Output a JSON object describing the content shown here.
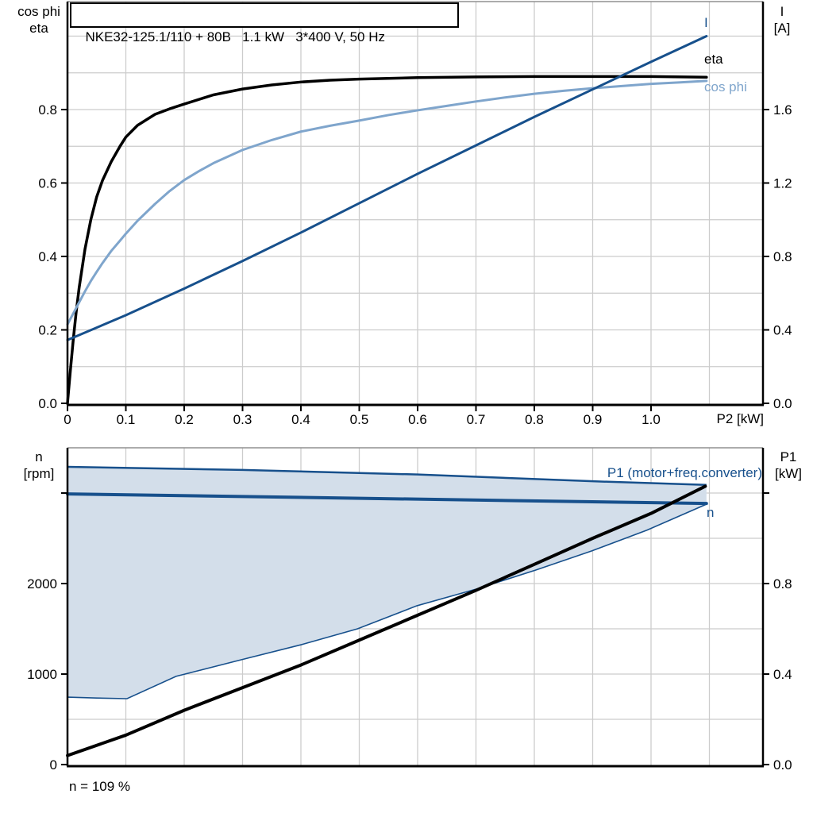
{
  "colors": {
    "navy": "#17508C",
    "light_blue": "#7FA5CC",
    "black": "#000000",
    "fill": "#D3DEEA",
    "grid": "#CCCCCC",
    "border_gray": "#909090"
  },
  "chart_data": [
    {
      "type": "line",
      "title": "NKE32-125.1/110 + 80B   1.1 kW   3*400 V, 50 Hz",
      "xlabel": "P2 [kW]",
      "ylabel_left": "cos phi / eta",
      "ylabel_left_lines": [
        "cos phi",
        "eta"
      ],
      "ylabel_right": "I [A]",
      "ylabel_right_lines": [
        "I",
        "[A]"
      ],
      "xlim": [
        0,
        1.19
      ],
      "ylim_left": [
        0,
        1.1
      ],
      "ylim_right": [
        0,
        2.2
      ],
      "grid": true,
      "legend_position": "inline-right",
      "x_ticks": {
        "values": [
          0,
          0.1,
          0.2,
          0.3,
          0.4,
          0.5,
          0.6,
          0.7,
          0.8,
          0.9,
          1.0
        ],
        "labels": [
          "0",
          "0.1",
          "0.2",
          "0.3",
          "0.4",
          "0.5",
          "0.6",
          "0.7",
          "0.8",
          "0.9",
          "1.0"
        ]
      },
      "y_ticks_left": {
        "values": [
          0,
          0.2,
          0.4,
          0.6,
          0.8
        ],
        "labels": [
          "0.0",
          "0.2",
          "0.4",
          "0.6",
          "0.8"
        ],
        "unlabeled": []
      },
      "y_ticks_right": {
        "values": [
          0,
          0.4,
          0.8,
          1.2,
          1.6
        ],
        "labels": [
          "0.0",
          "0.4",
          "0.8",
          "1.2",
          "1.6"
        ],
        "unlabeled": []
      },
      "grid_x": [
        0.1,
        0.2,
        0.3,
        0.4,
        0.5,
        0.6,
        0.7,
        0.8,
        0.9,
        1.0,
        1.1
      ],
      "grid_y_left": [
        0.1,
        0.2,
        0.3,
        0.4,
        0.5,
        0.6,
        0.7,
        0.8,
        0.9,
        1.0
      ],
      "series": [
        {
          "name": "eta",
          "label": "eta",
          "axis": "left",
          "color": "black",
          "width": 3.5,
          "x": [
            0,
            0.005,
            0.01,
            0.015,
            0.02,
            0.03,
            0.04,
            0.05,
            0.06,
            0.075,
            0.09,
            0.1,
            0.12,
            0.15,
            0.175,
            0.2,
            0.25,
            0.3,
            0.35,
            0.4,
            0.45,
            0.5,
            0.6,
            0.7,
            0.8,
            0.9,
            1.0,
            1.095
          ],
          "y": [
            0,
            0.09,
            0.175,
            0.25,
            0.315,
            0.42,
            0.5,
            0.562,
            0.607,
            0.658,
            0.7,
            0.725,
            0.757,
            0.787,
            0.802,
            0.815,
            0.84,
            0.856,
            0.867,
            0.875,
            0.88,
            0.883,
            0.887,
            0.889,
            0.89,
            0.89,
            0.89,
            0.888
          ]
        },
        {
          "name": "cos phi",
          "label": "cos phi",
          "axis": "left",
          "color": "light_blue",
          "width": 3,
          "x": [
            0,
            0.01,
            0.02,
            0.03,
            0.04,
            0.05,
            0.06,
            0.075,
            0.09,
            0.1,
            0.12,
            0.15,
            0.175,
            0.2,
            0.225,
            0.25,
            0.3,
            0.35,
            0.4,
            0.45,
            0.5,
            0.55,
            0.6,
            0.65,
            0.7,
            0.75,
            0.8,
            0.85,
            0.9,
            0.95,
            1.0,
            1.05,
            1.095
          ],
          "y": [
            0.215,
            0.245,
            0.275,
            0.305,
            0.333,
            0.358,
            0.382,
            0.415,
            0.443,
            0.462,
            0.497,
            0.543,
            0.578,
            0.608,
            0.632,
            0.654,
            0.69,
            0.717,
            0.74,
            0.756,
            0.77,
            0.785,
            0.798,
            0.81,
            0.822,
            0.833,
            0.843,
            0.851,
            0.858,
            0.864,
            0.87,
            0.874,
            0.878
          ]
        },
        {
          "name": "I",
          "label": "I",
          "axis": "right",
          "color": "navy",
          "width": 3,
          "x": [
            0,
            0.1,
            0.2,
            0.3,
            0.4,
            0.5,
            0.6,
            0.7,
            0.8,
            0.9,
            1.0,
            1.095
          ],
          "y": [
            0.345,
            0.48,
            0.625,
            0.775,
            0.93,
            1.09,
            1.25,
            1.405,
            1.56,
            1.71,
            1.86,
            2.0
          ]
        }
      ]
    },
    {
      "type": "line+area",
      "title": "",
      "xlabel": "",
      "ylabel_left": "n [rpm]",
      "ylabel_left_lines": [
        "n",
        "[rpm]"
      ],
      "ylabel_right": "P1 [kW]",
      "ylabel_right_lines": [
        "P1",
        "[kW]"
      ],
      "xlim": [
        0,
        1.19
      ],
      "ylim_left": [
        0,
        3500
      ],
      "ylim_right": [
        0,
        1.4
      ],
      "grid": true,
      "annotation": "n = 109 %",
      "x_ticks": {
        "values": [],
        "labels": []
      },
      "y_ticks_left": {
        "values": [
          0,
          1000,
          2000
        ],
        "labels": [
          "0",
          "1000",
          "2000"
        ],
        "unlabeled": [
          3000
        ]
      },
      "y_ticks_right": {
        "values": [
          0,
          0.4,
          0.8
        ],
        "labels": [
          "0.0",
          "0.4",
          "0.8"
        ],
        "unlabeled": [
          1.2
        ]
      },
      "grid_x": [
        0.1,
        0.2,
        0.3,
        0.4,
        0.5,
        0.6,
        0.7,
        0.8,
        0.9,
        1.0,
        1.1
      ],
      "grid_y_left": [
        500,
        1000,
        1500,
        2000,
        2500,
        3000
      ],
      "area": {
        "name": "speed-operating-range",
        "fill": "fill",
        "edge_color": "navy",
        "top_edge": {
          "x": [
            0,
            0.3,
            0.6,
            0.9,
            1.095
          ],
          "n": [
            3290,
            3255,
            3205,
            3130,
            3090
          ]
        },
        "bottom_edge": {
          "x": [
            0,
            0.05,
            0.102,
            0.186,
            0.299,
            0.401,
            0.497,
            0.599,
            0.701,
            0.803,
            0.898,
            0.993,
            1.095
          ],
          "n": [
            745,
            735,
            728,
            975,
            1160,
            1325,
            1500,
            1755,
            1940,
            2150,
            2360,
            2590,
            2877
          ]
        }
      },
      "series": [
        {
          "name": "n",
          "label": "n",
          "axis": "left",
          "color": "navy",
          "width": 4,
          "x": [
            0,
            1.095
          ],
          "y": [
            2990,
            2885
          ]
        },
        {
          "name": "P1",
          "label": "P1 (motor+freq.converter)",
          "axis": "right",
          "color": "black",
          "width": 4,
          "x": [
            0,
            0.1,
            0.2,
            0.3,
            0.4,
            0.5,
            0.6,
            0.7,
            0.8,
            0.9,
            1.0,
            1.093
          ],
          "y": [
            0.04,
            0.13,
            0.24,
            0.34,
            0.44,
            0.55,
            0.66,
            0.77,
            0.885,
            1.0,
            1.11,
            1.23
          ]
        }
      ]
    }
  ]
}
